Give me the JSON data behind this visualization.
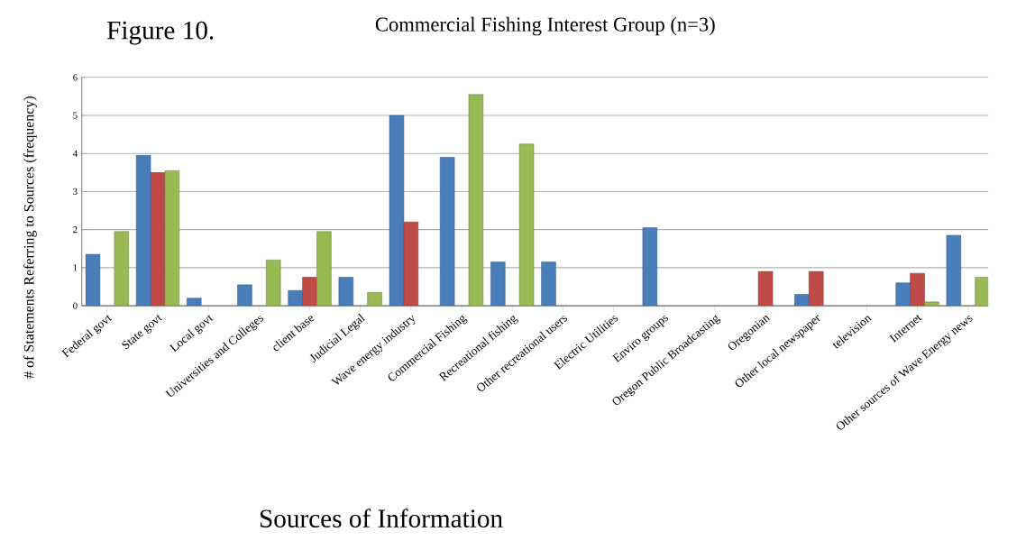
{
  "chart_data": {
    "type": "bar",
    "title": "Commercial Fishing Interest Group (n=3)",
    "annotations": [
      "Figure 10."
    ],
    "xlabel": "Sources of Information",
    "ylabel": "# of Statements Referring to Sources (frequency)",
    "categories": [
      "Federal govt",
      "State govt",
      "Local govt",
      "Universities and Colleges",
      "client base",
      "Judicial Legal",
      "Wave energy industry",
      "Commercial Fishing",
      "Recreational fishing",
      "Other recreational users",
      "Electric Utilities",
      "Enviro groups",
      "Oregon Public Broadcasting",
      "Oregonian",
      "Other local newspaper",
      "television",
      "Internet",
      "Other sources of Wave Energy news"
    ],
    "series": [
      {
        "color": "#4a7ebb",
        "values": [
          1.35,
          3.95,
          0.2,
          0.55,
          0.4,
          0.75,
          5.0,
          3.9,
          1.15,
          1.15,
          null,
          2.05,
          null,
          null,
          0.3,
          null,
          0.6,
          1.85
        ]
      },
      {
        "color": "#be4b48",
        "values": [
          null,
          3.5,
          null,
          null,
          0.75,
          null,
          2.2,
          null,
          null,
          null,
          null,
          null,
          null,
          0.9,
          0.9,
          null,
          0.85,
          null
        ]
      },
      {
        "color": "#98b954",
        "values": [
          1.95,
          3.55,
          null,
          1.2,
          1.95,
          0.35,
          null,
          5.55,
          4.25,
          null,
          null,
          null,
          null,
          null,
          null,
          null,
          0.1,
          0.75
        ]
      }
    ],
    "ylim": [
      0,
      6
    ],
    "yticks": [
      0,
      1,
      2,
      3,
      4,
      5,
      6
    ],
    "grid": "y"
  }
}
